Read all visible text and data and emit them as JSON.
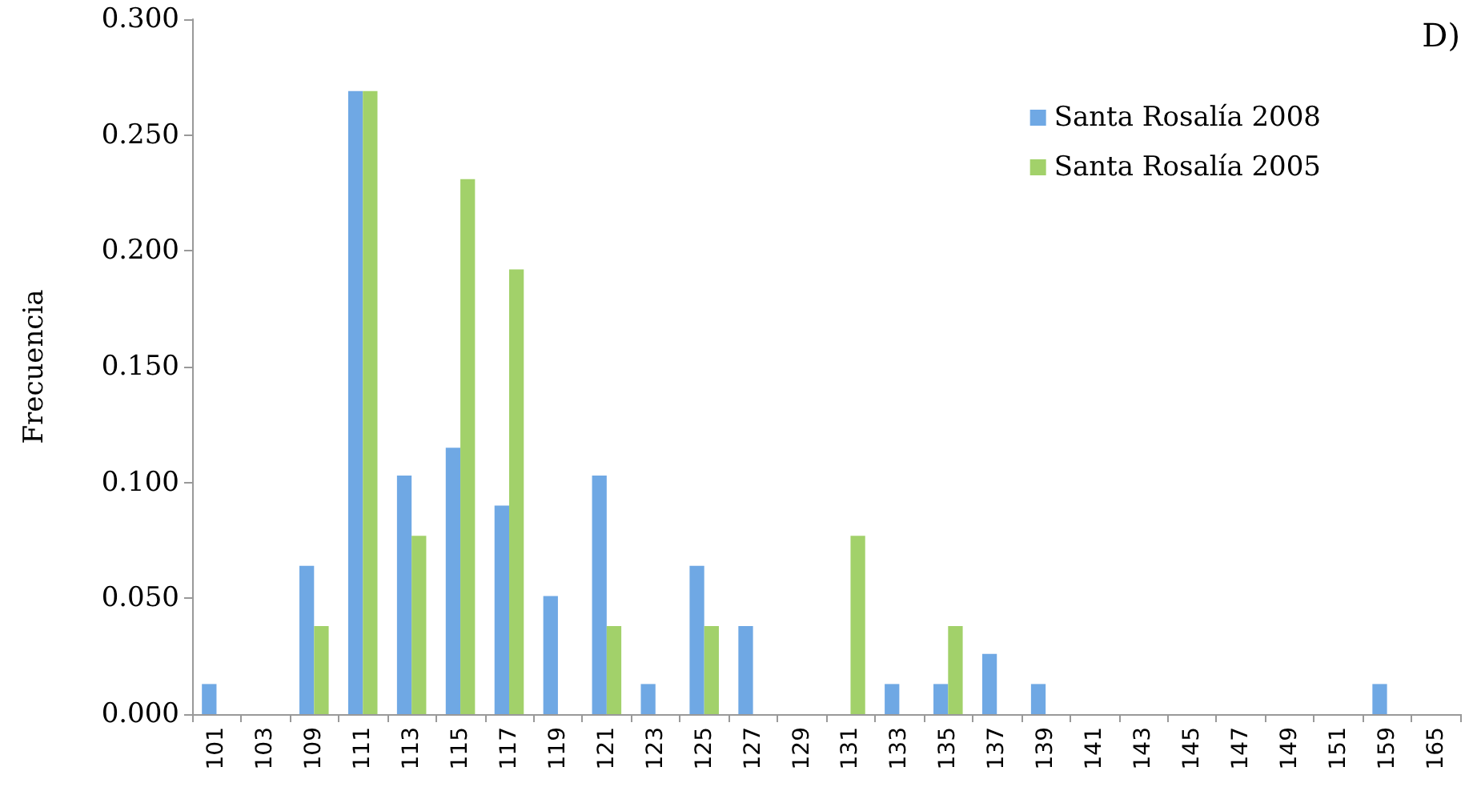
{
  "chart_data": {
    "type": "bar",
    "ylabel": "Frecuencia",
    "annotations": [
      "D)"
    ],
    "categories": [
      "101",
      "103",
      "109",
      "111",
      "113",
      "115",
      "117",
      "119",
      "121",
      "123",
      "125",
      "127",
      "129",
      "131",
      "133",
      "135",
      "137",
      "139",
      "141",
      "143",
      "145",
      "147",
      "149",
      "151",
      "159",
      "165"
    ],
    "series": [
      {
        "name": "Santa Rosalía 2008",
        "color": "#6fa8e4",
        "values": [
          0.013,
          0,
          0.064,
          0.269,
          0.103,
          0.115,
          0.09,
          0.051,
          0.103,
          0.013,
          0.064,
          0.038,
          0,
          0,
          0.013,
          0.013,
          0.026,
          0.013,
          0,
          0,
          0,
          0,
          0,
          0,
          0.013,
          0
        ]
      },
      {
        "name": "Santa Rosalía 2005",
        "color": "#a2d16a",
        "values": [
          0,
          0,
          0.038,
          0.269,
          0.077,
          0.231,
          0.192,
          0,
          0.038,
          0,
          0.038,
          0,
          0,
          0.077,
          0,
          0.038,
          0,
          0,
          0,
          0,
          0,
          0,
          0,
          0,
          0,
          0
        ]
      }
    ],
    "ylim": [
      0,
      0.3
    ],
    "yticks": [
      {
        "value": 0,
        "label": "0.000"
      },
      {
        "value": 0.05,
        "label": "0.050"
      },
      {
        "value": 0.1,
        "label": "0.100"
      },
      {
        "value": 0.15,
        "label": "0.150"
      },
      {
        "value": 0.2,
        "label": "0.200"
      },
      {
        "value": 0.25,
        "label": "0.250"
      },
      {
        "value": 0.3,
        "label": "0.300"
      }
    ],
    "grid": false,
    "legend": "top right"
  }
}
